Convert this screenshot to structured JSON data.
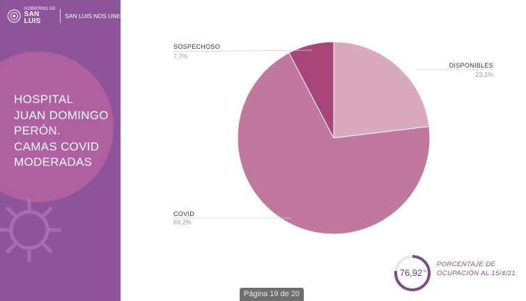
{
  "header": {
    "gov_small": "GOBIERNO DE",
    "gov_big": "SAN LUIS",
    "tagline": "SAN LUIS NOS UNE"
  },
  "sidebar": {
    "title": "HOSPITAL\nJUAN DOMINGO\nPERÓN.\nCAMAS COVID\nMODERADAS"
  },
  "chart_data": {
    "type": "pie",
    "categories": [
      "DISPONIBLES",
      "COVID",
      "SOSPECHOSO"
    ],
    "values": [
      23.1,
      69.2,
      7.7
    ],
    "labels": [
      "23,1%",
      "69,2%",
      "7,7%"
    ],
    "colors": [
      "#d8a9bf",
      "#c0789e",
      "#a8457a"
    ]
  },
  "occupancy": {
    "value": "76,92",
    "unit": "%",
    "fraction": 0.7692,
    "label": "PORCENTAJE DE\nOCUPACIÓN AL 15/4/21."
  },
  "footer": {
    "page_indicator": "Página 19 de 20"
  },
  "colors": {
    "sidebar": "#8e5499",
    "accent": "#7a4f86"
  }
}
